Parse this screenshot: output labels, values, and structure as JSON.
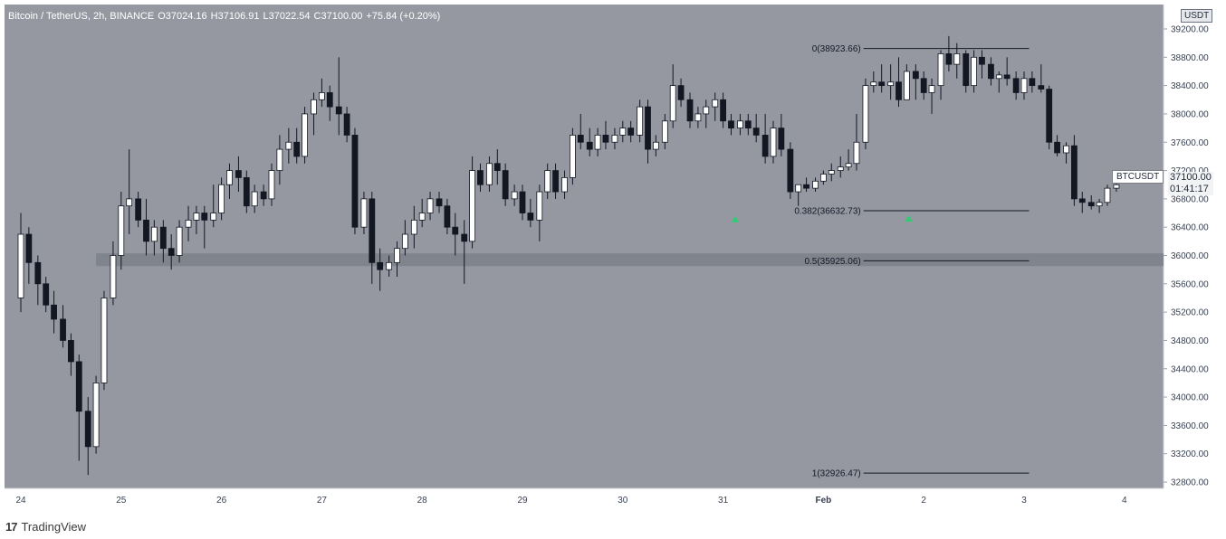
{
  "header": {
    "symbol": "Bitcoin / TetherUS, 2h, BINANCE",
    "open_key": "O",
    "open": "37024.16",
    "high_key": "H",
    "high": "37106.91",
    "low_key": "L",
    "low": "37022.54",
    "close_key": "C",
    "close": "37100.00",
    "change": "+75.84 (+0.20%)"
  },
  "footer": {
    "logo": "17",
    "brand": "TradingView"
  },
  "currency_badge": "USDT",
  "price_badge": "BTCUSDT",
  "last_price": {
    "value": "37100.00",
    "countdown": "01:41:17"
  },
  "colors": {
    "background": "#9598a1",
    "axis_background": "#ffffff",
    "up_candle": "#ffffff",
    "down_candle": "#131722",
    "wick": "#131722",
    "zone": "#7d8088",
    "fib_line": "#131722",
    "signal_arrow": "#26a69a"
  },
  "chart_data": {
    "type": "candlestick",
    "title": "Bitcoin / TetherUS, 2h, BINANCE",
    "interval": "2h",
    "currency": "USDT",
    "x_ticks": [
      "24",
      "25",
      "26",
      "27",
      "28",
      "29",
      "30",
      "31",
      "Feb",
      "2",
      "3",
      "4"
    ],
    "y_ticks": [
      "39200.00",
      "38800.00",
      "38400.00",
      "38000.00",
      "37600.00",
      "37200.00",
      "36800.00",
      "36400.00",
      "36000.00",
      "35600.00",
      "35200.00",
      "34800.00",
      "34400.00",
      "34000.00",
      "33600.00",
      "33200.00",
      "32800.00"
    ],
    "ylim": [
      32700,
      39400
    ],
    "grid": false,
    "fib_levels": [
      {
        "label": "0(38923.66)",
        "value": 38923.66
      },
      {
        "label": "0.382(36632.73)",
        "value": 36632.73
      },
      {
        "label": "0.5(35925.06)",
        "value": 35925.06
      },
      {
        "label": "1(32926.47)",
        "value": 32926.47
      }
    ],
    "support_zone": {
      "from": 35850,
      "to": 36030
    },
    "signal_arrows": [
      {
        "day": 31.12,
        "price": 36520
      },
      {
        "day": 32.85,
        "price": 36530
      }
    ],
    "candles": [
      [
        24.0,
        35400,
        36600,
        35200,
        36300
      ],
      [
        24.08,
        36300,
        36400,
        35600,
        35900
      ],
      [
        24.17,
        35900,
        36000,
        35300,
        35600
      ],
      [
        24.25,
        35600,
        35700,
        35200,
        35300
      ],
      [
        24.33,
        35300,
        35500,
        34900,
        35100
      ],
      [
        24.42,
        35100,
        35300,
        34700,
        34800
      ],
      [
        24.5,
        34800,
        34900,
        34300,
        34500
      ],
      [
        24.58,
        34500,
        34600,
        33100,
        33800
      ],
      [
        24.67,
        33800,
        34000,
        32900,
        33300
      ],
      [
        24.75,
        33300,
        34300,
        33200,
        34200
      ],
      [
        24.83,
        34200,
        35500,
        34100,
        35400
      ],
      [
        24.92,
        35400,
        36200,
        35300,
        36000
      ],
      [
        25.0,
        36000,
        36900,
        35800,
        36700
      ],
      [
        25.08,
        36700,
        37500,
        36300,
        36800
      ],
      [
        25.17,
        36800,
        36900,
        36400,
        36500
      ],
      [
        25.25,
        36500,
        36800,
        36000,
        36200
      ],
      [
        25.33,
        36200,
        36500,
        36000,
        36400
      ],
      [
        25.42,
        36400,
        36500,
        35900,
        36100
      ],
      [
        25.5,
        36100,
        36300,
        35800,
        36000
      ],
      [
        25.58,
        36000,
        36500,
        35900,
        36400
      ],
      [
        25.67,
        36400,
        36700,
        36200,
        36500
      ],
      [
        25.75,
        36500,
        36700,
        36300,
        36600
      ],
      [
        25.83,
        36600,
        36700,
        36100,
        36500
      ],
      [
        25.92,
        36500,
        37000,
        36400,
        36600
      ],
      [
        26.0,
        36600,
        37100,
        36500,
        37000
      ],
      [
        26.08,
        37000,
        37300,
        36800,
        37200
      ],
      [
        26.17,
        37200,
        37400,
        36900,
        37100
      ],
      [
        26.25,
        37100,
        37200,
        36600,
        36700
      ],
      [
        26.33,
        36700,
        37000,
        36600,
        36900
      ],
      [
        26.42,
        36900,
        37000,
        36700,
        36800
      ],
      [
        26.5,
        36800,
        37300,
        36700,
        37200
      ],
      [
        26.58,
        37200,
        37700,
        37000,
        37500
      ],
      [
        26.67,
        37500,
        37800,
        37300,
        37600
      ],
      [
        26.75,
        37600,
        37800,
        37300,
        37400
      ],
      [
        26.83,
        37400,
        38100,
        37300,
        38000
      ],
      [
        26.92,
        38000,
        38300,
        37700,
        38200
      ],
      [
        27.0,
        38200,
        38500,
        38100,
        38300
      ],
      [
        27.08,
        38300,
        38400,
        37900,
        38100
      ],
      [
        27.17,
        38100,
        38800,
        37700,
        38000
      ],
      [
        27.25,
        38000,
        38100,
        37600,
        37700
      ],
      [
        27.33,
        37700,
        37800,
        36300,
        36400
      ],
      [
        27.42,
        36400,
        36900,
        36300,
        36800
      ],
      [
        27.5,
        36800,
        36900,
        35600,
        35900
      ],
      [
        27.58,
        35900,
        36100,
        35500,
        35800
      ],
      [
        27.67,
        35800,
        36000,
        35700,
        35900
      ],
      [
        27.75,
        35900,
        36200,
        35700,
        36100
      ],
      [
        27.83,
        36100,
        36500,
        36000,
        36300
      ],
      [
        27.92,
        36300,
        36700,
        36100,
        36500
      ],
      [
        28.0,
        36500,
        36800,
        36400,
        36600
      ],
      [
        28.08,
        36600,
        36900,
        36500,
        36800
      ],
      [
        28.17,
        36800,
        36900,
        36600,
        36700
      ],
      [
        28.25,
        36700,
        36800,
        36300,
        36400
      ],
      [
        28.33,
        36400,
        36600,
        36000,
        36300
      ],
      [
        28.42,
        36300,
        36500,
        35600,
        36200
      ],
      [
        28.5,
        36200,
        37400,
        36100,
        37200
      ],
      [
        28.58,
        37200,
        37300,
        36900,
        37000
      ],
      [
        28.67,
        37000,
        37400,
        36900,
        37300
      ],
      [
        28.75,
        37300,
        37500,
        37000,
        37200
      ],
      [
        28.83,
        37200,
        37300,
        36700,
        36800
      ],
      [
        28.92,
        36800,
        37000,
        36700,
        36900
      ],
      [
        29.0,
        36900,
        37000,
        36500,
        36600
      ],
      [
        29.08,
        36600,
        36800,
        36400,
        36500
      ],
      [
        29.17,
        36500,
        37000,
        36200,
        36900
      ],
      [
        29.25,
        36900,
        37300,
        36800,
        37200
      ],
      [
        29.33,
        37200,
        37300,
        36800,
        36900
      ],
      [
        29.42,
        36900,
        37200,
        36800,
        37100
      ],
      [
        29.5,
        37100,
        37800,
        37000,
        37700
      ],
      [
        29.58,
        37700,
        38000,
        37500,
        37600
      ],
      [
        29.67,
        37600,
        37800,
        37400,
        37500
      ],
      [
        29.75,
        37500,
        37800,
        37400,
        37700
      ],
      [
        29.83,
        37700,
        37900,
        37500,
        37600
      ],
      [
        29.92,
        37600,
        37800,
        37500,
        37700
      ],
      [
        30.0,
        37700,
        37900,
        37600,
        37800
      ],
      [
        30.08,
        37800,
        37900,
        37600,
        37700
      ],
      [
        30.17,
        37700,
        38200,
        37600,
        38100
      ],
      [
        30.25,
        38100,
        38200,
        37300,
        37500
      ],
      [
        30.33,
        37500,
        37700,
        37400,
        37600
      ],
      [
        30.42,
        37600,
        38000,
        37500,
        37900
      ],
      [
        30.5,
        37900,
        38700,
        37800,
        38400
      ],
      [
        30.58,
        38400,
        38500,
        38100,
        38200
      ],
      [
        30.67,
        38200,
        38300,
        37800,
        37900
      ],
      [
        30.75,
        37900,
        38100,
        37800,
        38000
      ],
      [
        30.83,
        38000,
        38200,
        37800,
        38100
      ],
      [
        30.92,
        38100,
        38300,
        37900,
        38200
      ],
      [
        31.0,
        38200,
        38300,
        37800,
        37900
      ],
      [
        31.08,
        37900,
        38000,
        37700,
        37800
      ],
      [
        31.17,
        37800,
        38000,
        37700,
        37900
      ],
      [
        31.25,
        37900,
        38000,
        37700,
        37800
      ],
      [
        31.33,
        37800,
        38000,
        37600,
        37700
      ],
      [
        31.42,
        37700,
        38000,
        37300,
        37400
      ],
      [
        31.5,
        37400,
        37900,
        37300,
        37800
      ],
      [
        31.58,
        37800,
        38000,
        37400,
        37500
      ],
      [
        31.67,
        37500,
        37600,
        36800,
        36900
      ],
      [
        31.75,
        36900,
        37000,
        36700,
        37000
      ],
      [
        31.83,
        37000,
        37100,
        36900,
        36950
      ],
      [
        31.92,
        36950,
        37100,
        36900,
        37050
      ],
      [
        32.0,
        37050,
        37200,
        37000,
        37150
      ],
      [
        32.08,
        37150,
        37300,
        37050,
        37200
      ],
      [
        32.17,
        37200,
        37400,
        37100,
        37250
      ],
      [
        32.25,
        37250,
        37500,
        37200,
        37300
      ],
      [
        32.33,
        37300,
        38000,
        37200,
        37600
      ],
      [
        32.42,
        37600,
        38500,
        37500,
        38400
      ],
      [
        32.5,
        38400,
        38600,
        38300,
        38450
      ],
      [
        32.58,
        38450,
        38700,
        38300,
        38400
      ],
      [
        32.67,
        38400,
        38700,
        38200,
        38450
      ],
      [
        32.75,
        38450,
        38800,
        38100,
        38200
      ],
      [
        32.83,
        38200,
        38700,
        38200,
        38600
      ],
      [
        32.92,
        38600,
        38700,
        38200,
        38500
      ],
      [
        33.0,
        38500,
        38600,
        38200,
        38300
      ],
      [
        33.08,
        38300,
        38500,
        38000,
        38400
      ],
      [
        33.17,
        38400,
        38900,
        38200,
        38850
      ],
      [
        33.25,
        38850,
        39100,
        38600,
        38700
      ],
      [
        33.33,
        38700,
        39000,
        38500,
        38850
      ],
      [
        33.42,
        38850,
        38900,
        38300,
        38400
      ],
      [
        33.5,
        38400,
        38900,
        38300,
        38800
      ],
      [
        33.58,
        38800,
        38900,
        38500,
        38700
      ],
      [
        33.67,
        38700,
        38800,
        38400,
        38500
      ],
      [
        33.75,
        38500,
        38600,
        38300,
        38550
      ],
      [
        33.83,
        38550,
        38800,
        38400,
        38500
      ],
      [
        33.92,
        38500,
        38600,
        38200,
        38300
      ],
      [
        34.0,
        38300,
        38600,
        38200,
        38500
      ],
      [
        34.08,
        38500,
        38600,
        38300,
        38400
      ],
      [
        34.17,
        38400,
        38700,
        38300,
        38350
      ],
      [
        34.25,
        38350,
        38400,
        37500,
        37600
      ],
      [
        34.33,
        37600,
        37700,
        37400,
        37450
      ],
      [
        34.42,
        37450,
        37600,
        37300,
        37550
      ],
      [
        34.5,
        37550,
        37700,
        36700,
        36800
      ],
      [
        34.58,
        36800,
        36900,
        36600,
        36750
      ],
      [
        34.67,
        36750,
        36850,
        36650,
        36700
      ],
      [
        34.75,
        36700,
        36800,
        36600,
        36750
      ],
      [
        34.83,
        36750,
        37000,
        36700,
        36950
      ],
      [
        34.92,
        36950,
        37100,
        36900,
        37000
      ],
      [
        35.0,
        37024,
        37107,
        37023,
        37100
      ]
    ]
  }
}
